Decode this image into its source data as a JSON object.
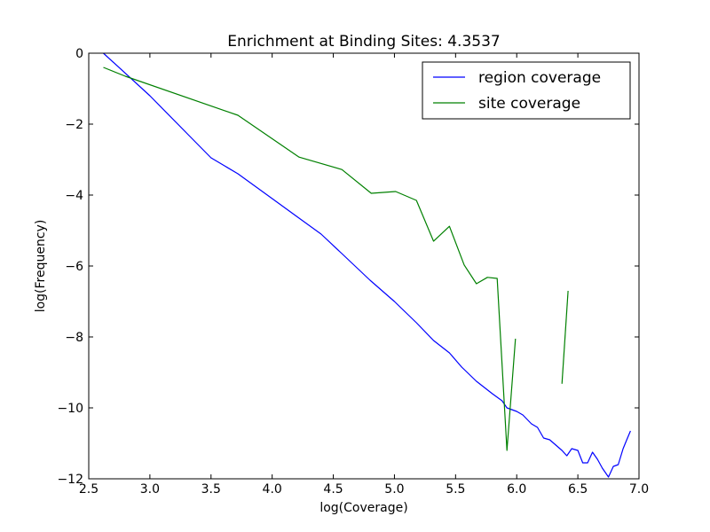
{
  "chart_data": {
    "type": "line",
    "title": "Enrichment at Binding Sites: 4.3537",
    "xlabel": "log(Coverage)",
    "ylabel": "log(Frequency)",
    "xlim": [
      2.5,
      7.0
    ],
    "ylim": [
      -12,
      0
    ],
    "xticks": [
      2.5,
      3.0,
      3.5,
      4.0,
      4.5,
      5.0,
      5.5,
      6.0,
      6.5,
      7.0
    ],
    "xtick_labels": [
      "2.5",
      "3.0",
      "3.5",
      "4.0",
      "4.5",
      "5.0",
      "5.5",
      "6.0",
      "6.5",
      "7.0"
    ],
    "yticks": [
      0,
      -2,
      -4,
      -6,
      -8,
      -10,
      -12
    ],
    "ytick_labels": [
      "0",
      "−2",
      "−4",
      "−6",
      "−8",
      "−10",
      "−12"
    ],
    "grid": false,
    "legend_position": "top-right",
    "series": [
      {
        "name": "region coverage",
        "color": "#0000ff",
        "segments": [
          [
            [
              2.62,
              0.0
            ],
            [
              3.0,
              -1.2
            ],
            [
              3.3,
              -2.25
            ],
            [
              3.5,
              -2.95
            ],
            [
              3.72,
              -3.4
            ],
            [
              4.0,
              -4.1
            ],
            [
              4.2,
              -4.6
            ],
            [
              4.4,
              -5.1
            ],
            [
              4.57,
              -5.65
            ],
            [
              4.8,
              -6.4
            ],
            [
              5.0,
              -7.0
            ],
            [
              5.18,
              -7.6
            ],
            [
              5.32,
              -8.1
            ],
            [
              5.45,
              -8.45
            ],
            [
              5.55,
              -8.85
            ],
            [
              5.67,
              -9.25
            ],
            [
              5.8,
              -9.6
            ],
            [
              5.88,
              -9.8
            ],
            [
              5.92,
              -10.0
            ],
            [
              6.0,
              -10.1
            ],
            [
              6.05,
              -10.2
            ],
            [
              6.12,
              -10.45
            ],
            [
              6.17,
              -10.55
            ],
            [
              6.22,
              -10.85
            ],
            [
              6.27,
              -10.9
            ],
            [
              6.32,
              -11.05
            ],
            [
              6.37,
              -11.2
            ],
            [
              6.41,
              -11.35
            ],
            [
              6.45,
              -11.15
            ],
            [
              6.5,
              -11.2
            ],
            [
              6.54,
              -11.55
            ],
            [
              6.58,
              -11.55
            ],
            [
              6.62,
              -11.25
            ],
            [
              6.66,
              -11.45
            ],
            [
              6.7,
              -11.7
            ],
            [
              6.75,
              -11.95
            ],
            [
              6.79,
              -11.65
            ],
            [
              6.83,
              -11.6
            ],
            [
              6.87,
              -11.15
            ],
            [
              6.9,
              -10.9
            ],
            [
              6.93,
              -10.65
            ]
          ]
        ]
      },
      {
        "name": "site coverage",
        "color": "#008000",
        "segments": [
          [
            [
              2.62,
              -0.4
            ],
            [
              2.8,
              -0.65
            ],
            [
              3.72,
              -1.75
            ],
            [
              4.22,
              -2.93
            ],
            [
              4.57,
              -3.28
            ],
            [
              4.81,
              -3.95
            ],
            [
              5.01,
              -3.9
            ],
            [
              5.18,
              -4.15
            ],
            [
              5.32,
              -5.3
            ],
            [
              5.45,
              -4.88
            ],
            [
              5.57,
              -5.97
            ],
            [
              5.67,
              -6.5
            ],
            [
              5.76,
              -6.32
            ],
            [
              5.84,
              -6.35
            ],
            [
              5.92,
              -11.2
            ],
            [
              5.99,
              -8.05
            ]
          ],
          [
            [
              6.37,
              -9.32
            ],
            [
              6.42,
              -6.7
            ]
          ]
        ]
      }
    ]
  }
}
